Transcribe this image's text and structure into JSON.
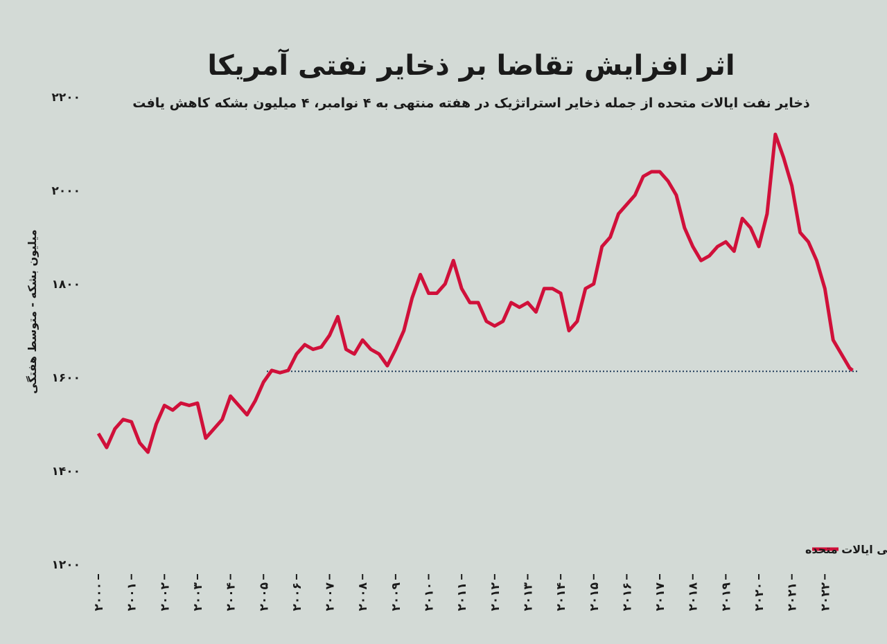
{
  "chart_data": {
    "type": "line",
    "title": "اثر افزایش تقاضا بر ذخایر نفتی آمریکا",
    "subtitle": "ذخایر نفت ایالات متحده از جمله ذخایر استراتژیک در هفته منتهی به ۴ نوامبر، ۴ میلیون بشکه کاهش یافت",
    "y_label": "میلیون بشکه - متوسط هفتگی",
    "x": [
      2000,
      2000.25,
      2000.5,
      2000.75,
      2001,
      2001.25,
      2001.5,
      2001.75,
      2002,
      2002.25,
      2002.5,
      2002.75,
      2003,
      2003.25,
      2003.5,
      2003.75,
      2004,
      2004.25,
      2004.5,
      2004.75,
      2005,
      2005.25,
      2005.5,
      2005.75,
      2006,
      2006.25,
      2006.5,
      2006.75,
      2007,
      2007.25,
      2007.5,
      2007.75,
      2008,
      2008.25,
      2008.5,
      2008.75,
      2009,
      2009.25,
      2009.5,
      2009.75,
      2010,
      2010.25,
      2010.5,
      2010.75,
      2011,
      2011.25,
      2011.5,
      2011.75,
      2012,
      2012.25,
      2012.5,
      2012.75,
      2013,
      2013.25,
      2013.5,
      2013.75,
      2014,
      2014.25,
      2014.5,
      2014.75,
      2015,
      2015.25,
      2015.5,
      2015.75,
      2016,
      2016.25,
      2016.5,
      2016.75,
      2017,
      2017.25,
      2017.5,
      2017.75,
      2018,
      2018.25,
      2018.5,
      2018.75,
      2019,
      2019.25,
      2019.5,
      2019.75,
      2020,
      2020.25,
      2020.5,
      2020.75,
      2021,
      2021.25,
      2021.5,
      2021.75,
      2022,
      2022.25,
      2022.5,
      2022.75,
      2022.84
    ],
    "series": [
      {
        "name": "آخرین ذخایر هفتگی نفت خام و فرآورده های نفتی ایالات متحده",
        "color": "#d0103a",
        "values": [
          1480,
          1450,
          1490,
          1510,
          1505,
          1460,
          1440,
          1500,
          1540,
          1530,
          1545,
          1540,
          1545,
          1470,
          1490,
          1510,
          1560,
          1540,
          1520,
          1550,
          1590,
          1615,
          1610,
          1615,
          1650,
          1670,
          1660,
          1665,
          1690,
          1730,
          1660,
          1650,
          1680,
          1660,
          1650,
          1625,
          1660,
          1700,
          1770,
          1820,
          1780,
          1780,
          1800,
          1850,
          1790,
          1760,
          1760,
          1720,
          1710,
          1720,
          1760,
          1750,
          1760,
          1740,
          1790,
          1790,
          1780,
          1700,
          1720,
          1790,
          1800,
          1880,
          1900,
          1950,
          1970,
          1990,
          2030,
          2040,
          2040,
          2020,
          1990,
          1920,
          1880,
          1850,
          1860,
          1880,
          1890,
          1870,
          1940,
          1920,
          1880,
          1950,
          2120,
          2070,
          2010,
          1910,
          1890,
          1850,
          1790,
          1680,
          1650,
          1620,
          1615
        ]
      }
    ],
    "reference_line": 1613,
    "xlim": [
      2000,
      2023
    ],
    "ylim": [
      1200,
      2200
    ],
    "yticks": [
      {
        "value": 1200,
        "label": "۱۲۰۰"
      },
      {
        "value": 1400,
        "label": "۱۴۰۰"
      },
      {
        "value": 1600,
        "label": "۱۶۰۰"
      },
      {
        "value": 1800,
        "label": "۱۸۰۰"
      },
      {
        "value": 2000,
        "label": "۲۰۰۰"
      },
      {
        "value": 2200,
        "label": "۲۲۰۰"
      }
    ],
    "xticks": [
      {
        "value": 2000,
        "label": "۲۰۰۰"
      },
      {
        "value": 2001,
        "label": "۲۰۰۱"
      },
      {
        "value": 2002,
        "label": "۲۰۰۲"
      },
      {
        "value": 2003,
        "label": "۲۰۰۳"
      },
      {
        "value": 2004,
        "label": "۲۰۰۴"
      },
      {
        "value": 2005,
        "label": "۲۰۰۵"
      },
      {
        "value": 2006,
        "label": "۲۰۰۶"
      },
      {
        "value": 2007,
        "label": "۲۰۰۷"
      },
      {
        "value": 2008,
        "label": "۲۰۰۸"
      },
      {
        "value": 2009,
        "label": "۲۰۰۹"
      },
      {
        "value": 2010,
        "label": "۲۰۱۰"
      },
      {
        "value": 2011,
        "label": "۲۰۱۱"
      },
      {
        "value": 2012,
        "label": "۲۰۱۲"
      },
      {
        "value": 2013,
        "label": "۲۰۱۳"
      },
      {
        "value": 2014,
        "label": "۲۰۱۴"
      },
      {
        "value": 2015,
        "label": "۲۰۱۵"
      },
      {
        "value": 2016,
        "label": "۲۰۱۶"
      },
      {
        "value": 2017,
        "label": "۲۰۱۷"
      },
      {
        "value": 2018,
        "label": "۲۰۱۸"
      },
      {
        "value": 2019,
        "label": "۲۰۱۹"
      },
      {
        "value": 2020,
        "label": "۲۰۲۰"
      },
      {
        "value": 2021,
        "label": "۲۰۲۱"
      },
      {
        "value": 2022,
        "label": "۲۰۲۲"
      }
    ],
    "grid": false,
    "legend": "bottom-right"
  }
}
